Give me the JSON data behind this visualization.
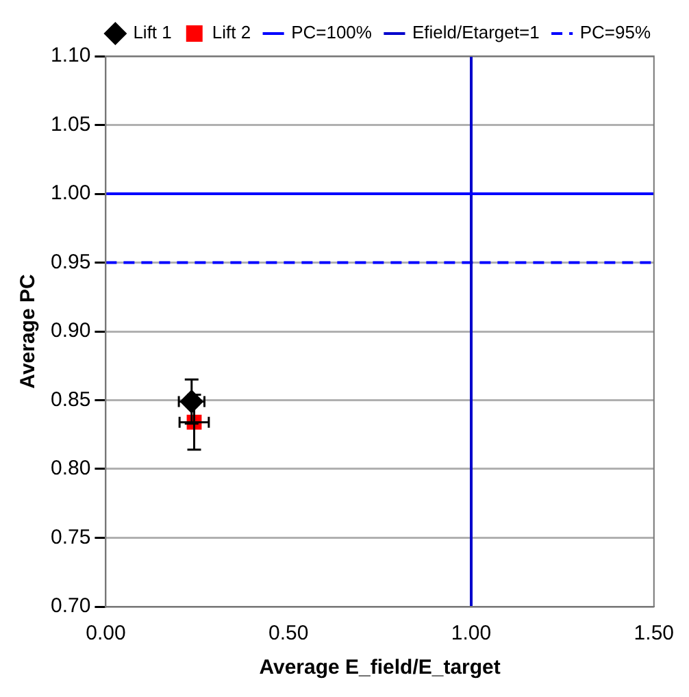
{
  "chart_data": {
    "type": "scatter",
    "xlabel": "Average E_field/E_target",
    "ylabel": "Average PC",
    "xlim": [
      0,
      1.5
    ],
    "ylim": [
      0.7,
      1.1
    ],
    "xticks": [
      {
        "value": 0,
        "label": "0.00"
      },
      {
        "value": 0.5,
        "label": "0.50"
      },
      {
        "value": 1,
        "label": "1.00"
      },
      {
        "value": 1.5,
        "label": "1.50"
      }
    ],
    "yticks": [
      {
        "value": 0.7,
        "label": "0.70"
      },
      {
        "value": 0.75,
        "label": "0.75"
      },
      {
        "value": 0.8,
        "label": "0.80"
      },
      {
        "value": 0.85,
        "label": "0.85"
      },
      {
        "value": 0.9,
        "label": "0.90"
      },
      {
        "value": 0.95,
        "label": "0.95"
      },
      {
        "value": 1,
        "label": "1.00"
      },
      {
        "value": 1.05,
        "label": "1.05"
      },
      {
        "value": 1.1,
        "label": "1.10"
      }
    ],
    "grid": "y",
    "legend": "top",
    "series": [
      {
        "name": "Lift 1",
        "marker": "diamond",
        "color": "#000000",
        "x": [
          0.235
        ],
        "values": [
          0.849
        ],
        "errors": [
          0.016
        ],
        "xerrors": [
          0.035
        ]
      },
      {
        "name": "Lift 2",
        "marker": "square",
        "color": "#ff0000",
        "x": [
          0.242
        ],
        "values": [
          0.834
        ],
        "errors": [
          0.02
        ],
        "xerrors": [
          0.04
        ]
      },
      {
        "name": "PC=100%",
        "type": "line",
        "line_style": "solid",
        "color": "#0000ff",
        "x": [
          0,
          1.5
        ],
        "values": [
          1,
          1
        ]
      },
      {
        "name": "Efield/Etarget=1",
        "type": "line",
        "line_style": "solid",
        "color": "#0000cc",
        "x": [
          1,
          1
        ],
        "values": [
          0.7,
          1.1
        ]
      },
      {
        "name": "PC=95%",
        "type": "line",
        "line_style": "dashed",
        "color": "#0000ff",
        "x": [
          0,
          1.5
        ],
        "values": [
          0.95,
          0.95
        ]
      }
    ]
  }
}
